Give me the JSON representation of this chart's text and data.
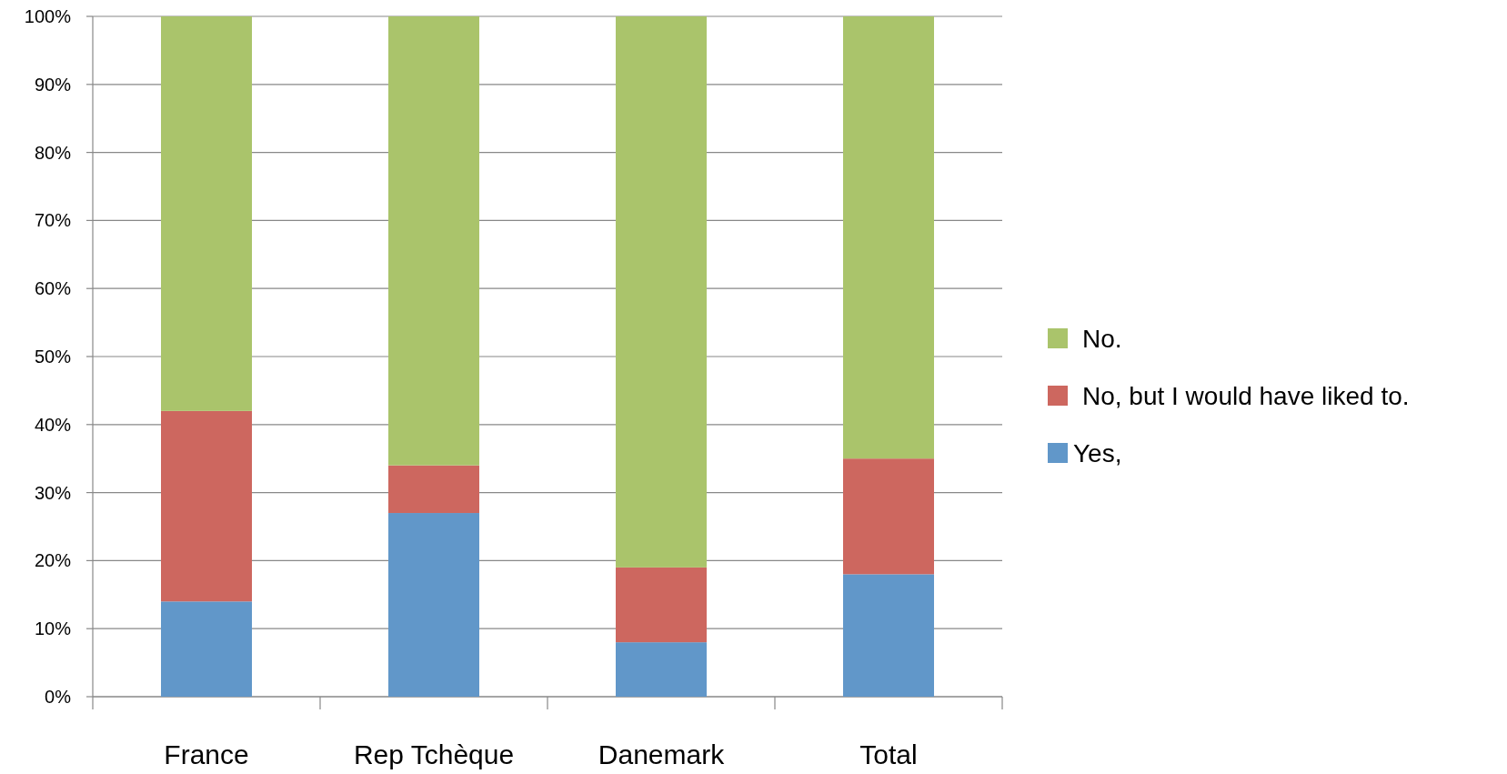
{
  "chart_data": {
    "type": "bar",
    "stacked": true,
    "categories": [
      "France",
      "Rep Tchèque",
      "Danemark",
      "Total"
    ],
    "series": [
      {
        "name": "Yes,",
        "color": "#6197c9",
        "values": [
          14,
          27,
          8,
          18
        ]
      },
      {
        "name": "No, but I would have liked to.",
        "color": "#cd675f",
        "values": [
          28,
          7,
          11,
          17
        ]
      },
      {
        "name": "No.",
        "color": "#aac46b",
        "values": [
          58,
          66,
          81,
          65
        ]
      }
    ],
    "ylim": [
      0,
      100
    ],
    "yticks": [
      {
        "value": 0,
        "label": "0%"
      },
      {
        "value": 10,
        "label": "10%"
      },
      {
        "value": 20,
        "label": "20%"
      },
      {
        "value": 30,
        "label": "30%"
      },
      {
        "value": 40,
        "label": "40%"
      },
      {
        "value": 50,
        "label": "50%"
      },
      {
        "value": 60,
        "label": "60%"
      },
      {
        "value": 70,
        "label": "70%"
      },
      {
        "value": 80,
        "label": "80%"
      },
      {
        "value": 90,
        "label": "90%"
      },
      {
        "value": 100,
        "label": "100%"
      }
    ],
    "grid": "y",
    "legend": "right"
  }
}
